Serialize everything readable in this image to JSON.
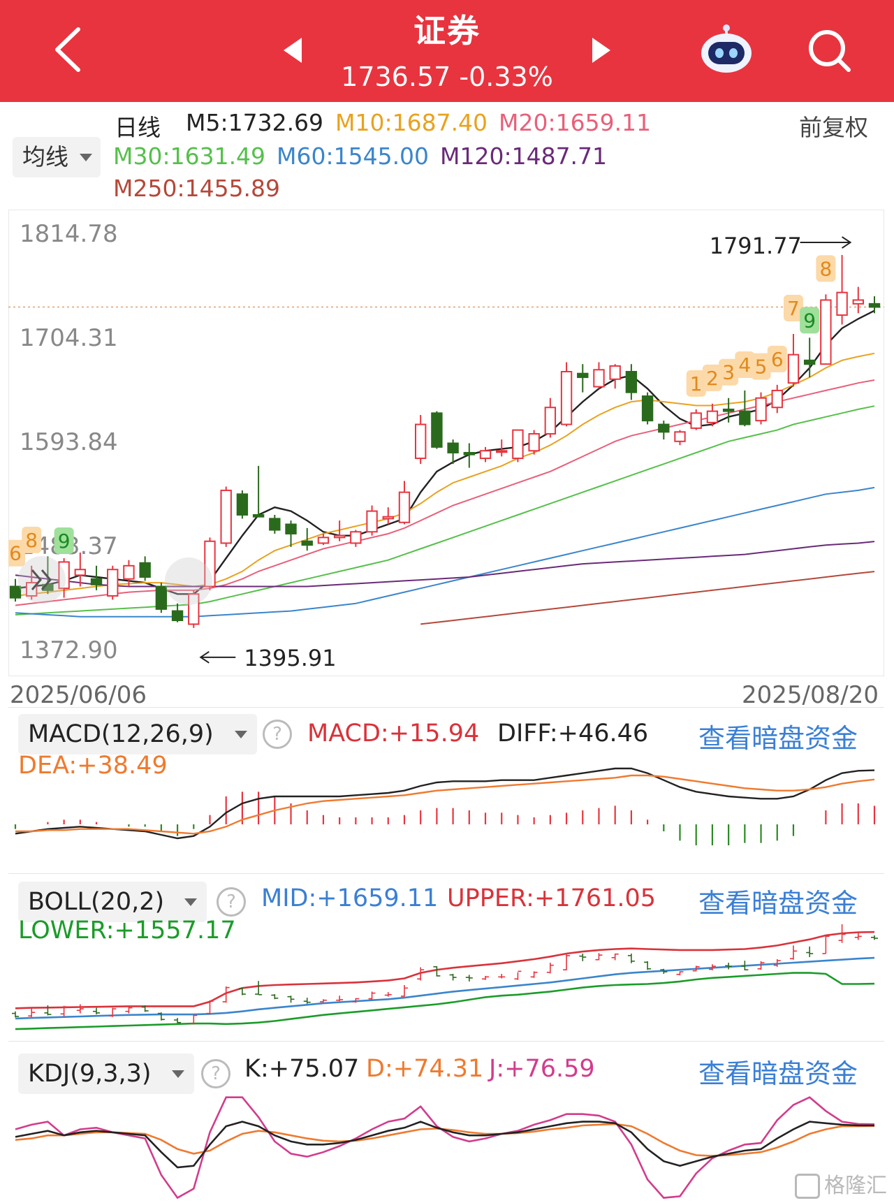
{
  "header": {
    "title": "证券",
    "price": "1736.57",
    "change": "-0.33%"
  },
  "ma": {
    "period": "日线",
    "m5": "M5:1732.69",
    "m10": "M10:1687.40",
    "m20": "M20:1659.11",
    "m30": "M30:1631.49",
    "m60": "M60:1545.00",
    "m120": "M120:1487.71",
    "m250": "M250:1455.89",
    "adjust": "前复权",
    "selector": "均线",
    "colors": {
      "m5": "#222222",
      "m10": "#e9a21e",
      "m20": "#e8607a",
      "m30": "#55c04a",
      "m60": "#3a85cc",
      "m120": "#6a2a78",
      "m250": "#b5483a"
    }
  },
  "main_chart": {
    "y_labels": [
      "1814.78",
      "1704.31",
      "1593.84",
      "1483.37",
      "1372.90"
    ],
    "high_label": "1791.77",
    "low_label": "1395.91",
    "start_date": "2025/06/06",
    "end_date": "2025/08/20",
    "sequence_marks": [
      "6",
      "8",
      "9",
      "1",
      "2",
      "3",
      "4",
      "5",
      "6",
      "7",
      "8",
      "9"
    ]
  },
  "macd": {
    "selector": "MACD(12,26,9)",
    "macd": "MACD:+15.94",
    "diff": "DIFF:+46.46",
    "dea": "DEA:+38.49",
    "link": "查看暗盘资金"
  },
  "boll": {
    "selector": "BOLL(20,2)",
    "mid": "MID:+1659.11",
    "upper": "UPPER:+1761.05",
    "lower": "LOWER:+1557.17",
    "link": "查看暗盘资金"
  },
  "kdj": {
    "selector": "KDJ(9,3,3)",
    "k": "K:+75.07",
    "d": "D:+74.31",
    "j": "J:+76.59",
    "link": "查看暗盘资金"
  },
  "watermark": "格隆汇",
  "chart_data": {
    "type": "candlestick",
    "title": "",
    "x_start": "2025/06/06",
    "x_end": "2025/08/20",
    "ylim": [
      1372.9,
      1814.78
    ],
    "y_ticks": [
      1814.78,
      1704.31,
      1593.84,
      1483.37,
      1372.9
    ],
    "last_close": 1736.57,
    "candles": [
      {
        "o": 1440,
        "h": 1448,
        "l": 1424,
        "c": 1428
      },
      {
        "o": 1430,
        "h": 1462,
        "l": 1426,
        "c": 1444
      },
      {
        "o": 1442,
        "h": 1472,
        "l": 1432,
        "c": 1436
      },
      {
        "o": 1438,
        "h": 1470,
        "l": 1428,
        "c": 1466
      },
      {
        "o": 1452,
        "h": 1476,
        "l": 1440,
        "c": 1458
      },
      {
        "o": 1448,
        "h": 1462,
        "l": 1436,
        "c": 1442
      },
      {
        "o": 1430,
        "h": 1462,
        "l": 1426,
        "c": 1458
      },
      {
        "o": 1448,
        "h": 1468,
        "l": 1440,
        "c": 1462
      },
      {
        "o": 1465,
        "h": 1472,
        "l": 1446,
        "c": 1450
      },
      {
        "o": 1440,
        "h": 1444,
        "l": 1412,
        "c": 1416
      },
      {
        "o": 1414,
        "h": 1422,
        "l": 1402,
        "c": 1404
      },
      {
        "o": 1400,
        "h": 1436,
        "l": 1396,
        "c": 1432
      },
      {
        "o": 1440,
        "h": 1492,
        "l": 1436,
        "c": 1488
      },
      {
        "o": 1486,
        "h": 1546,
        "l": 1482,
        "c": 1542
      },
      {
        "o": 1538,
        "h": 1542,
        "l": 1512,
        "c": 1516
      },
      {
        "o": 1516,
        "h": 1568,
        "l": 1514,
        "c": 1514
      },
      {
        "o": 1512,
        "h": 1516,
        "l": 1496,
        "c": 1500
      },
      {
        "o": 1506,
        "h": 1510,
        "l": 1482,
        "c": 1496
      },
      {
        "o": 1488,
        "h": 1502,
        "l": 1478,
        "c": 1484
      },
      {
        "o": 1486,
        "h": 1496,
        "l": 1484,
        "c": 1492
      },
      {
        "o": 1492,
        "h": 1510,
        "l": 1488,
        "c": 1494
      },
      {
        "o": 1486,
        "h": 1500,
        "l": 1482,
        "c": 1498
      },
      {
        "o": 1498,
        "h": 1526,
        "l": 1494,
        "c": 1520
      },
      {
        "o": 1512,
        "h": 1524,
        "l": 1506,
        "c": 1514
      },
      {
        "o": 1508,
        "h": 1552,
        "l": 1506,
        "c": 1540
      },
      {
        "o": 1576,
        "h": 1622,
        "l": 1570,
        "c": 1612
      },
      {
        "o": 1624,
        "h": 1626,
        "l": 1586,
        "c": 1588
      },
      {
        "o": 1592,
        "h": 1596,
        "l": 1570,
        "c": 1582
      },
      {
        "o": 1582,
        "h": 1592,
        "l": 1566,
        "c": 1580
      },
      {
        "o": 1576,
        "h": 1588,
        "l": 1572,
        "c": 1584
      },
      {
        "o": 1584,
        "h": 1596,
        "l": 1578,
        "c": 1584
      },
      {
        "o": 1576,
        "h": 1602,
        "l": 1572,
        "c": 1606
      },
      {
        "o": 1584,
        "h": 1606,
        "l": 1580,
        "c": 1602
      },
      {
        "o": 1602,
        "h": 1640,
        "l": 1598,
        "c": 1630
      },
      {
        "o": 1612,
        "h": 1678,
        "l": 1610,
        "c": 1668
      },
      {
        "o": 1666,
        "h": 1676,
        "l": 1646,
        "c": 1662
      },
      {
        "o": 1652,
        "h": 1678,
        "l": 1650,
        "c": 1670
      },
      {
        "o": 1660,
        "h": 1676,
        "l": 1650,
        "c": 1674
      },
      {
        "o": 1668,
        "h": 1676,
        "l": 1638,
        "c": 1646
      },
      {
        "o": 1642,
        "h": 1646,
        "l": 1612,
        "c": 1616
      },
      {
        "o": 1612,
        "h": 1616,
        "l": 1596,
        "c": 1604
      },
      {
        "o": 1594,
        "h": 1606,
        "l": 1590,
        "c": 1604
      },
      {
        "o": 1608,
        "h": 1628,
        "l": 1606,
        "c": 1624
      },
      {
        "o": 1614,
        "h": 1634,
        "l": 1610,
        "c": 1626
      },
      {
        "o": 1628,
        "h": 1640,
        "l": 1614,
        "c": 1626
      },
      {
        "o": 1626,
        "h": 1648,
        "l": 1610,
        "c": 1612
      },
      {
        "o": 1616,
        "h": 1646,
        "l": 1612,
        "c": 1640
      },
      {
        "o": 1630,
        "h": 1654,
        "l": 1624,
        "c": 1648
      },
      {
        "o": 1656,
        "h": 1708,
        "l": 1652,
        "c": 1686
      },
      {
        "o": 1680,
        "h": 1704,
        "l": 1662,
        "c": 1676
      },
      {
        "o": 1676,
        "h": 1750,
        "l": 1676,
        "c": 1744
      },
      {
        "o": 1728,
        "h": 1791.77,
        "l": 1718,
        "c": 1752
      },
      {
        "o": 1740,
        "h": 1758,
        "l": 1730,
        "c": 1744
      },
      {
        "o": 1740,
        "h": 1748,
        "l": 1730,
        "c": 1736.57
      }
    ],
    "ma_series": [
      {
        "name": "M5",
        "values": [
          1438,
          1440,
          1442,
          1446,
          1452,
          1450,
          1448,
          1446,
          1444,
          1438,
          1432,
          1432,
          1446,
          1470,
          1494,
          1516,
          1524,
          1520,
          1510,
          1498,
          1494,
          1494,
          1500,
          1506,
          1512,
          1540,
          1562,
          1572,
          1580,
          1584,
          1586,
          1588,
          1594,
          1604,
          1620,
          1636,
          1650,
          1660,
          1664,
          1650,
          1632,
          1618,
          1610,
          1612,
          1620,
          1624,
          1628,
          1638,
          1654,
          1672,
          1696,
          1714,
          1724,
          1732.69
        ]
      },
      {
        "name": "M10",
        "values": [
          1430,
          1432,
          1434,
          1436,
          1438,
          1440,
          1442,
          1443,
          1444,
          1444,
          1442,
          1440,
          1442,
          1448,
          1456,
          1468,
          1478,
          1484,
          1490,
          1496,
          1500,
          1504,
          1508,
          1512,
          1518,
          1528,
          1540,
          1550,
          1556,
          1562,
          1568,
          1576,
          1582,
          1590,
          1600,
          1612,
          1622,
          1630,
          1636,
          1638,
          1636,
          1634,
          1632,
          1632,
          1634,
          1636,
          1640,
          1646,
          1654,
          1662,
          1672,
          1680,
          1684,
          1687.4
        ]
      },
      {
        "name": "M20",
        "values": [
          1420,
          1422,
          1424,
          1426,
          1428,
          1430,
          1432,
          1434,
          1435,
          1436,
          1436,
          1436,
          1438,
          1442,
          1448,
          1456,
          1462,
          1468,
          1474,
          1480,
          1484,
          1488,
          1492,
          1496,
          1502,
          1510,
          1518,
          1526,
          1532,
          1538,
          1544,
          1550,
          1556,
          1562,
          1570,
          1578,
          1586,
          1594,
          1600,
          1604,
          1608,
          1612,
          1616,
          1620,
          1624,
          1628,
          1632,
          1636,
          1640,
          1644,
          1648,
          1652,
          1656,
          1659.11
        ]
      },
      {
        "name": "M30",
        "values": [
          1410,
          1411,
          1412,
          1413,
          1414,
          1415,
          1416,
          1417,
          1418,
          1419,
          1420,
          1421,
          1424,
          1428,
          1432,
          1436,
          1440,
          1444,
          1448,
          1452,
          1456,
          1460,
          1464,
          1468,
          1474,
          1480,
          1486,
          1492,
          1498,
          1504,
          1510,
          1516,
          1522,
          1528,
          1534,
          1540,
          1546,
          1552,
          1558,
          1564,
          1570,
          1576,
          1582,
          1588,
          1594,
          1598,
          1602,
          1606,
          1612,
          1616,
          1620,
          1624,
          1628,
          1631.49
        ]
      },
      {
        "name": "M60",
        "values": [
          1412,
          1411,
          1410,
          1409,
          1408,
          1408,
          1408,
          1408,
          1408,
          1408,
          1408,
          1408,
          1409,
          1410,
          1411,
          1412,
          1413,
          1414,
          1416,
          1418,
          1420,
          1422,
          1426,
          1430,
          1434,
          1438,
          1442,
          1446,
          1450,
          1454,
          1458,
          1462,
          1466,
          1470,
          1474,
          1478,
          1482,
          1486,
          1490,
          1494,
          1498,
          1502,
          1506,
          1510,
          1514,
          1518,
          1522,
          1526,
          1530,
          1534,
          1538,
          1540,
          1542,
          1545.0
        ]
      },
      {
        "name": "M120",
        "values": [
          1452,
          1450,
          1448,
          1446,
          1444,
          1442,
          1441,
          1440,
          1440,
          1440,
          1440,
          1440,
          1440,
          1440,
          1440,
          1440,
          1440,
          1440,
          1440,
          1441,
          1442,
          1443,
          1444,
          1445,
          1446,
          1447,
          1448,
          1449,
          1450,
          1452,
          1454,
          1456,
          1458,
          1460,
          1462,
          1464,
          1465,
          1466,
          1467,
          1468,
          1469,
          1470,
          1471,
          1472,
          1473,
          1474,
          1476,
          1478,
          1480,
          1482,
          1484,
          1485,
          1486,
          1487.71
        ]
      },
      {
        "name": "M250",
        "values": [
          null,
          null,
          null,
          null,
          null,
          null,
          null,
          null,
          null,
          null,
          null,
          null,
          null,
          null,
          null,
          null,
          null,
          null,
          null,
          null,
          null,
          null,
          null,
          null,
          null,
          1400,
          1402,
          1404,
          1406,
          1408,
          1410,
          1412,
          1414,
          1416,
          1418,
          1420,
          1422,
          1424,
          1426,
          1428,
          1430,
          1432,
          1434,
          1436,
          1438,
          1440,
          1442,
          1444,
          1446,
          1448,
          1450,
          1452,
          1454,
          1455.89
        ]
      }
    ],
    "macd_panel": {
      "diff": [
        -8,
        -6,
        -4,
        -3,
        -2,
        -3,
        -4,
        -5,
        -6,
        -9,
        -12,
        -10,
        -2,
        10,
        18,
        22,
        24,
        24,
        24,
        24,
        24,
        25,
        26,
        27,
        29,
        33,
        36,
        37,
        37,
        37,
        38,
        38,
        38,
        40,
        42,
        44,
        46,
        48,
        48,
        44,
        38,
        32,
        28,
        26,
        24,
        23,
        22,
        22,
        24,
        30,
        38,
        44,
        46,
        46.46
      ],
      "dea": [
        -6,
        -6,
        -5,
        -5,
        -4,
        -4,
        -4,
        -4,
        -5,
        -6,
        -7,
        -8,
        -6,
        -2,
        4,
        8,
        12,
        15,
        18,
        20,
        21,
        22,
        23,
        24,
        25,
        27,
        29,
        30,
        31,
        32,
        33,
        34,
        35,
        36,
        37,
        38,
        39,
        40,
        42,
        42,
        41,
        39,
        37,
        35,
        33,
        31,
        30,
        29,
        29,
        30,
        32,
        35,
        37,
        38.49
      ]
    },
    "boll_panel": {
      "mid": [
        1420,
        1422,
        1424,
        1426,
        1428,
        1430,
        1432,
        1434,
        1435,
        1436,
        1436,
        1436,
        1438,
        1442,
        1448,
        1456,
        1462,
        1468,
        1474,
        1480,
        1484,
        1488,
        1492,
        1496,
        1502,
        1510,
        1518,
        1526,
        1532,
        1538,
        1544,
        1550,
        1556,
        1562,
        1570,
        1578,
        1586,
        1594,
        1600,
        1604,
        1608,
        1612,
        1616,
        1620,
        1624,
        1628,
        1632,
        1636,
        1640,
        1644,
        1648,
        1652,
        1656,
        1659.11
      ],
      "upper": [
        1460,
        1462,
        1463,
        1464,
        1465,
        1466,
        1467,
        1468,
        1468,
        1468,
        1468,
        1468,
        1486,
        1520,
        1540,
        1548,
        1552,
        1554,
        1556,
        1558,
        1560,
        1562,
        1566,
        1570,
        1578,
        1600,
        1612,
        1620,
        1626,
        1632,
        1638,
        1646,
        1654,
        1664,
        1676,
        1684,
        1690,
        1694,
        1696,
        1694,
        1692,
        1690,
        1690,
        1690,
        1692,
        1694,
        1700,
        1708,
        1720,
        1732,
        1748,
        1756,
        1760,
        1761.05
      ],
      "lower": [
        1378,
        1380,
        1382,
        1384,
        1386,
        1388,
        1390,
        1392,
        1394,
        1396,
        1398,
        1400,
        1400,
        1398,
        1400,
        1404,
        1410,
        1418,
        1426,
        1434,
        1440,
        1446,
        1452,
        1458,
        1464,
        1470,
        1476,
        1484,
        1494,
        1504,
        1510,
        1514,
        1520,
        1526,
        1534,
        1542,
        1548,
        1552,
        1554,
        1556,
        1560,
        1566,
        1574,
        1580,
        1584,
        1588,
        1592,
        1596,
        1600,
        1600,
        1596,
        1556,
        1556,
        1557.17
      ]
    },
    "kdj_panel": {
      "k": [
        60,
        64,
        68,
        62,
        66,
        68,
        66,
        64,
        62,
        40,
        20,
        22,
        50,
        74,
        80,
        74,
        62,
        54,
        50,
        50,
        52,
        56,
        62,
        68,
        72,
        80,
        72,
        66,
        62,
        62,
        64,
        66,
        70,
        74,
        78,
        80,
        80,
        78,
        66,
        44,
        28,
        22,
        28,
        34,
        38,
        42,
        44,
        58,
        70,
        80,
        78,
        76,
        75,
        75.07
      ],
      "d": [
        56,
        58,
        62,
        62,
        64,
        66,
        66,
        65,
        64,
        56,
        44,
        38,
        42,
        54,
        64,
        68,
        66,
        62,
        58,
        55,
        54,
        55,
        58,
        62,
        66,
        70,
        71,
        69,
        66,
        64,
        64,
        65,
        67,
        70,
        72,
        75,
        76,
        77,
        74,
        64,
        52,
        42,
        36,
        35,
        36,
        38,
        40,
        46,
        54,
        64,
        70,
        74,
        74,
        74.31
      ],
      "j": [
        70,
        76,
        80,
        62,
        70,
        72,
        66,
        62,
        58,
        10,
        -20,
        -8,
        66,
        112,
        112,
        86,
        54,
        38,
        34,
        40,
        48,
        58,
        70,
        80,
        84,
        100,
        74,
        60,
        54,
        58,
        64,
        68,
        76,
        82,
        90,
        90,
        88,
        80,
        50,
        4,
        -20,
        -18,
        12,
        32,
        42,
        50,
        52,
        82,
        102,
        112,
        94,
        80,
        77,
        76.59
      ]
    }
  }
}
